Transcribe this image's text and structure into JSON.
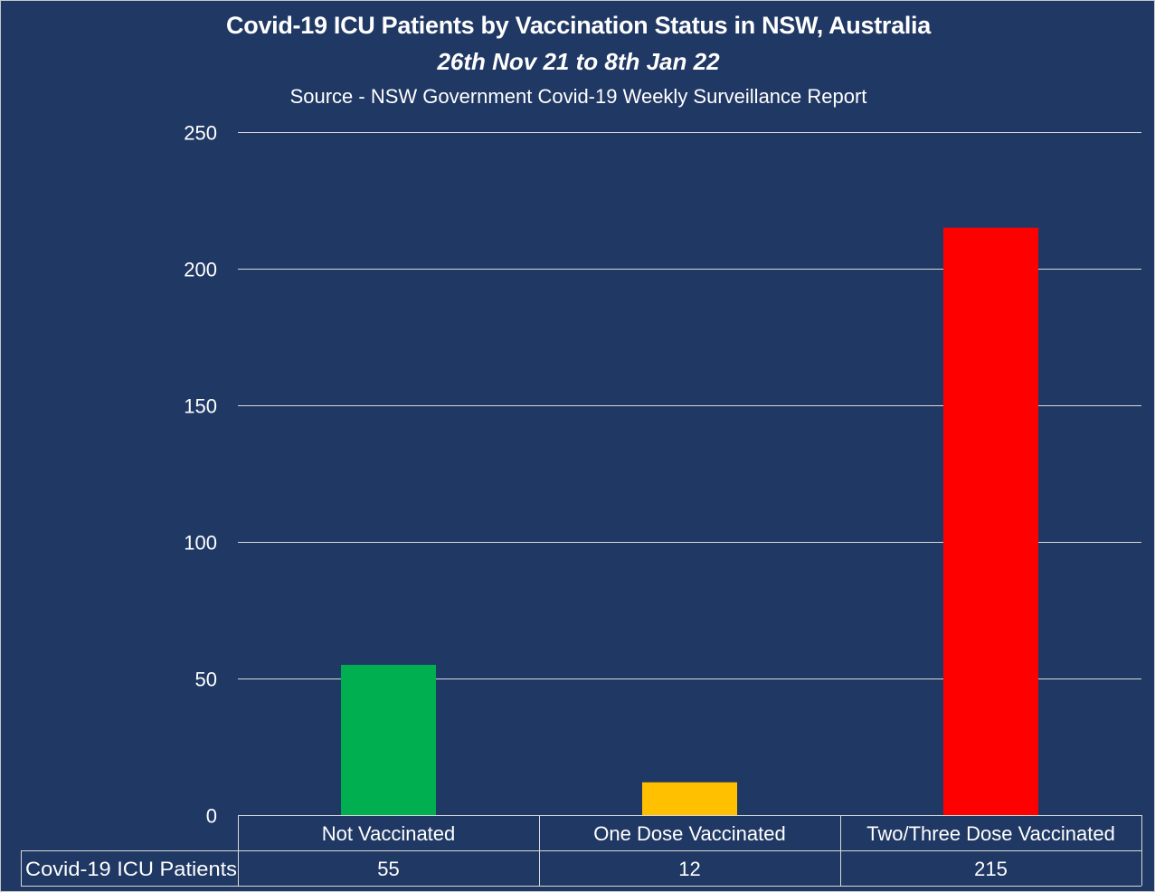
{
  "chart_data": {
    "type": "bar",
    "title": "Covid-19 ICU Patients by Vaccination Status in NSW, Australia",
    "subtitle": "26th Nov 21 to 8th Jan 22",
    "source": "Source - NSW Government Covid-19 Weekly Surveillance Report",
    "categories": [
      "Not Vaccinated",
      "One Dose Vaccinated",
      "Two/Three Dose Vaccinated"
    ],
    "series": [
      {
        "name": "Covid-19 ICU Patients",
        "values": [
          55,
          12,
          215
        ],
        "colors": [
          "#00b050",
          "#ffc000",
          "#ff0000"
        ]
      }
    ],
    "value_labels": [
      "55",
      "12",
      "215"
    ],
    "yticks": [
      0,
      50,
      100,
      150,
      200,
      250
    ],
    "ytick_labels": [
      "0",
      "50",
      "100",
      "150",
      "200",
      "250"
    ],
    "ylim": [
      0,
      250
    ],
    "grid": true,
    "legend": "data-table",
    "background": "#203864",
    "text_color": "#ffffff",
    "grid_color": "#d9d9d9"
  }
}
